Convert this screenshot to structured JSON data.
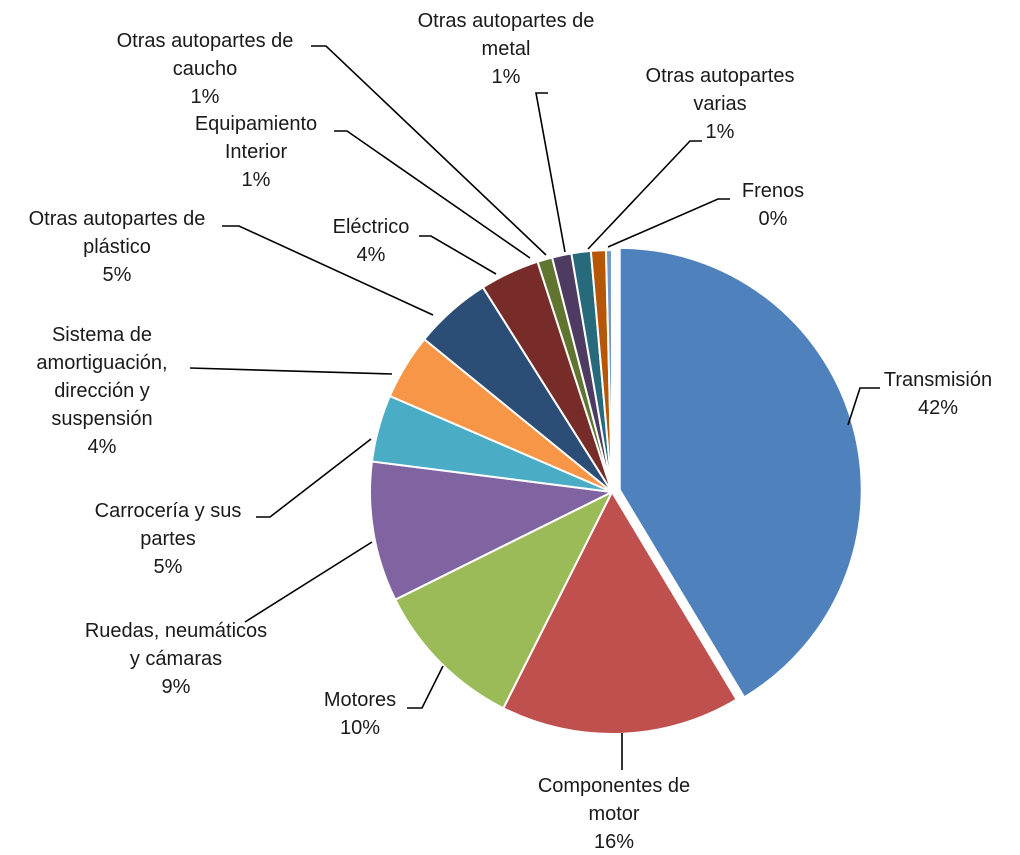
{
  "chart_data": {
    "type": "pie",
    "title": "",
    "slices": [
      {
        "label": [
          "Transmisión"
        ],
        "pct": "42%",
        "value": 41.6,
        "color": "#4F81BD"
      },
      {
        "label": [
          "Componentes de",
          "motor"
        ],
        "pct": "16%",
        "value": 16.1,
        "color": "#C0504D"
      },
      {
        "label": [
          "Motores"
        ],
        "pct": "10%",
        "value": 10.3,
        "color": "#9BBB59"
      },
      {
        "label": [
          "Ruedas, neumáticos",
          "y cámaras"
        ],
        "pct": "9%",
        "value": 9.4,
        "color": "#8064A2"
      },
      {
        "label": [
          "Carrocería y sus",
          "partes"
        ],
        "pct": "5%",
        "value": 4.5,
        "color": "#4BACC6"
      },
      {
        "label": [
          "Sistema de",
          "amortiguación,",
          "dirección y",
          "suspensión"
        ],
        "pct": "4%",
        "value": 4.4,
        "color": "#F79646"
      },
      {
        "label": [
          "Otras autopartes de",
          "plástico"
        ],
        "pct": "5%",
        "value": 5.2,
        "color": "#2C4D75"
      },
      {
        "label": [
          "Eléctrico"
        ],
        "pct": "4%",
        "value": 4.0,
        "color": "#772C2A"
      },
      {
        "label": [
          "Equipamiento",
          "Interior"
        ],
        "pct": "1%",
        "value": 1.0,
        "color": "#5F7530"
      },
      {
        "label": [
          "Otras autopartes de",
          "caucho"
        ],
        "pct": "1%",
        "value": 1.3,
        "color": "#4D3B62"
      },
      {
        "label": [
          "Otras autopartes de",
          "metal"
        ],
        "pct": "1%",
        "value": 1.3,
        "color": "#276A7C"
      },
      {
        "label": [
          "Otras autopartes",
          "varias"
        ],
        "pct": "1%",
        "value": 1.0,
        "color": "#B65708"
      },
      {
        "label": [
          "Frenos"
        ],
        "pct": "0%",
        "value": 0.4,
        "color": "#729ACA"
      }
    ]
  }
}
